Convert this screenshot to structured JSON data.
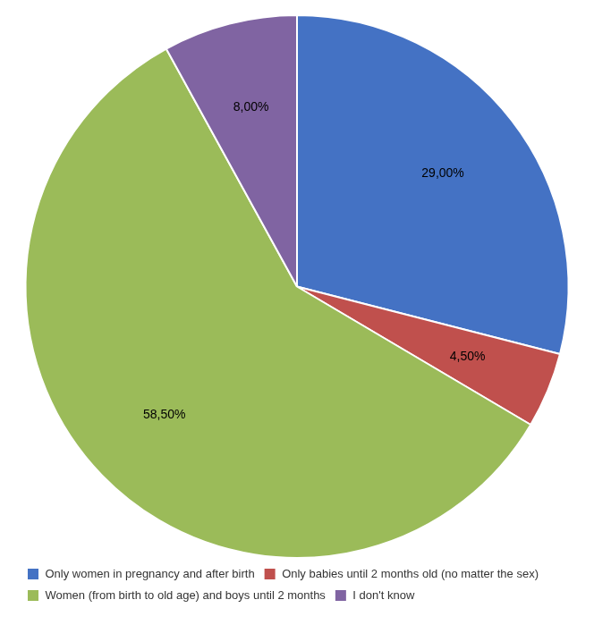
{
  "chart_data": {
    "type": "pie",
    "categories": [
      "Only women in pregnancy and after birth",
      "Only babies until 2 months old (no matter the sex)",
      "Women (from birth to old age) and boys until 2 months",
      "I don't know"
    ],
    "values": [
      29.0,
      4.5,
      58.5,
      8.0
    ],
    "value_labels": [
      "29,00%",
      "4,50%",
      "58,50%",
      "8,00%"
    ],
    "colors": [
      "#4472C4",
      "#C0504D",
      "#9BBB59",
      "#8064A2"
    ],
    "data_labels": true,
    "legend": "bottom"
  }
}
